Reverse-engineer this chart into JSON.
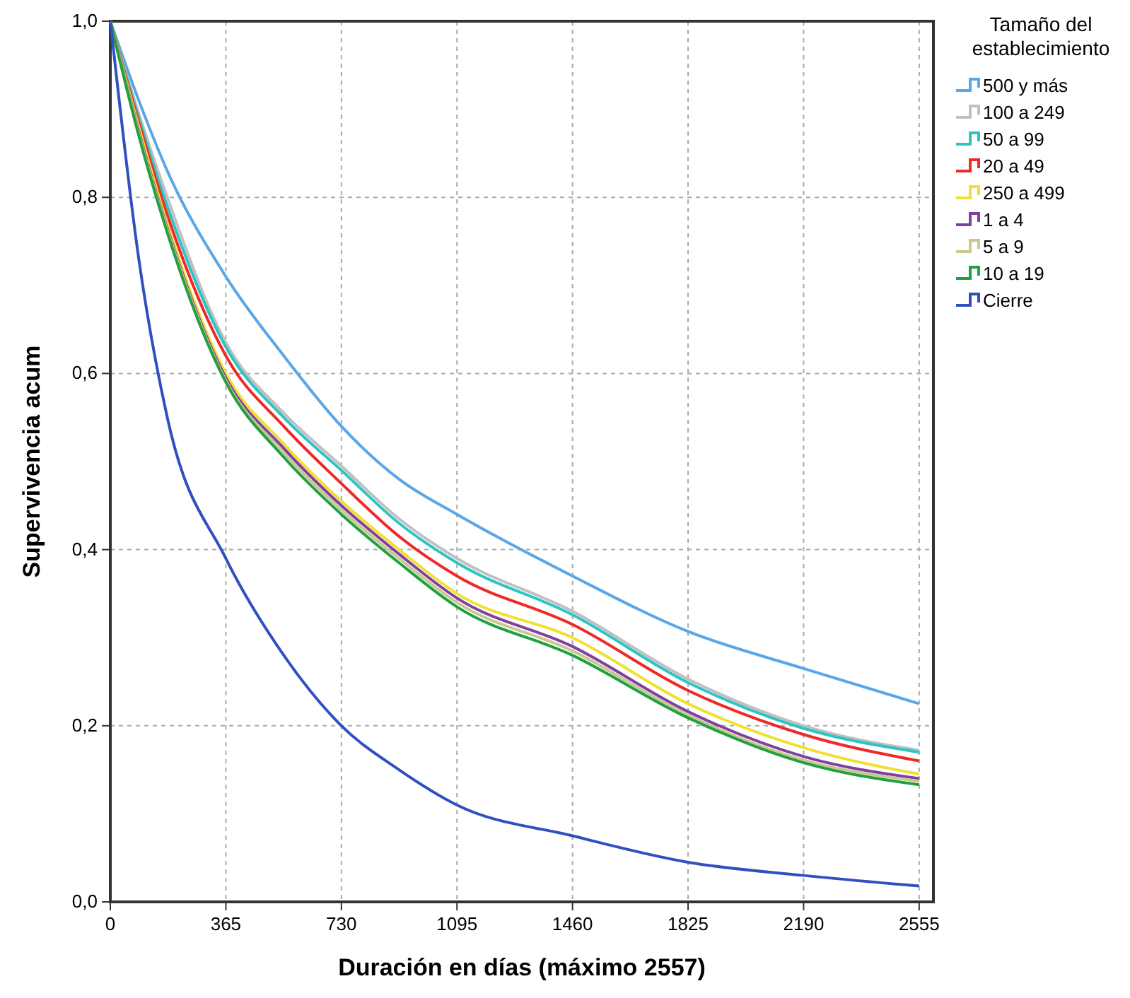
{
  "chart_data": {
    "type": "line",
    "xlabel": "Duración en días (máximo 2557)",
    "ylabel": "Supervivencia acum",
    "legend_title": "Tamaño del establecimiento",
    "legend": "right",
    "grid": true,
    "line_style": "solid",
    "x": [
      0,
      90,
      180,
      365,
      548,
      730,
      912,
      1095,
      1460,
      1825,
      2190,
      2555
    ],
    "xlim": [
      0,
      2600
    ],
    "xticks": [
      0,
      365,
      730,
      1095,
      1460,
      1825,
      2190,
      2555
    ],
    "ylim": [
      0,
      1
    ],
    "yticks": [
      {
        "value": 0,
        "label": "0,0"
      },
      {
        "value": 0.2,
        "label": "0,2"
      },
      {
        "value": 0.4,
        "label": "0,4"
      },
      {
        "value": 0.6,
        "label": "0,6"
      },
      {
        "value": 0.8,
        "label": "0,8"
      },
      {
        "value": 1,
        "label": "1,0"
      }
    ],
    "series": [
      {
        "name": "500 y más",
        "color": "#5aa6e6",
        "values": [
          1,
          0.91,
          0.83,
          0.71,
          0.62,
          0.54,
          0.48,
          0.44,
          0.37,
          0.307,
          0.265,
          0.225
        ]
      },
      {
        "name": "100 a 249",
        "color": "#c0c0c0",
        "values": [
          1,
          0.895,
          0.8,
          0.635,
          0.555,
          0.495,
          0.435,
          0.39,
          0.33,
          0.253,
          0.2,
          0.172
        ]
      },
      {
        "name": "50 a 99",
        "color": "#2ec4c4",
        "values": [
          1,
          0.89,
          0.79,
          0.63,
          0.55,
          0.49,
          0.43,
          0.385,
          0.326,
          0.249,
          0.197,
          0.17
        ]
      },
      {
        "name": "20 a 49",
        "color": "#f02828",
        "values": [
          1,
          0.885,
          0.78,
          0.62,
          0.54,
          0.475,
          0.415,
          0.37,
          0.315,
          0.24,
          0.19,
          0.16
        ]
      },
      {
        "name": "250 a 499",
        "color": "#f0e030",
        "values": [
          1,
          0.88,
          0.77,
          0.6,
          0.52,
          0.455,
          0.4,
          0.35,
          0.3,
          0.225,
          0.175,
          0.145
        ]
      },
      {
        "name": "1 a 4",
        "color": "#8040a0",
        "values": [
          1,
          0.875,
          0.765,
          0.595,
          0.515,
          0.45,
          0.395,
          0.345,
          0.29,
          0.216,
          0.165,
          0.14
        ]
      },
      {
        "name": "5 a 9",
        "color": "#c8c890",
        "values": [
          1,
          0.873,
          0.763,
          0.592,
          0.51,
          0.445,
          0.39,
          0.34,
          0.285,
          0.212,
          0.161,
          0.137
        ]
      },
      {
        "name": "10 a 19",
        "color": "#20a040",
        "values": [
          1,
          0.87,
          0.76,
          0.59,
          0.505,
          0.44,
          0.385,
          0.335,
          0.28,
          0.209,
          0.158,
          0.133
        ]
      },
      {
        "name": "Cierre",
        "color": "#3050c0",
        "values": [
          1,
          0.73,
          0.55,
          0.39,
          0.28,
          0.2,
          0.15,
          0.11,
          0.075,
          0.045,
          0.03,
          0.018
        ]
      }
    ]
  }
}
